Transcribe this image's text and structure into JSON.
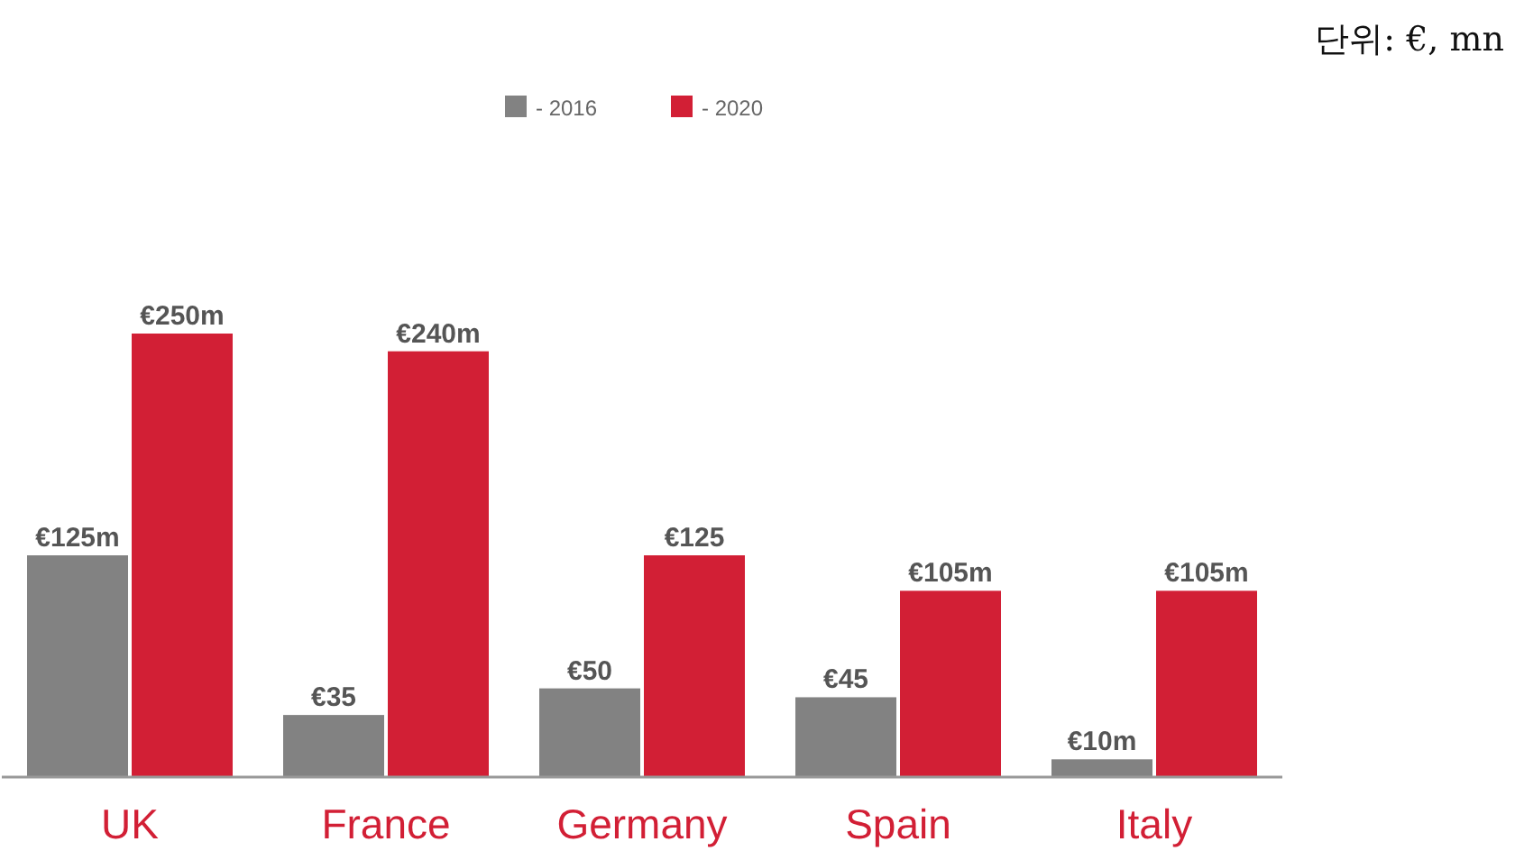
{
  "chart_data": {
    "type": "bar",
    "relative": false,
    "annotations": [
      "단위: €, mn"
    ],
    "categories": [
      "UK",
      "France",
      "Germany",
      "Spain",
      "Italy"
    ],
    "series": [
      {
        "name": "- 2016",
        "color": "#828282",
        "values": [
          125,
          35,
          50,
          45,
          10
        ],
        "value_labels": [
          "€125m",
          "€35",
          "€50",
          "€45",
          "€10m"
        ]
      },
      {
        "name": "- 2020",
        "color": "#d21f35",
        "values": [
          250,
          240,
          125,
          105,
          105
        ],
        "value_labels": [
          "€250m",
          "€240m",
          "€125",
          "€105m",
          "€105m"
        ]
      }
    ],
    "legend": "top"
  }
}
